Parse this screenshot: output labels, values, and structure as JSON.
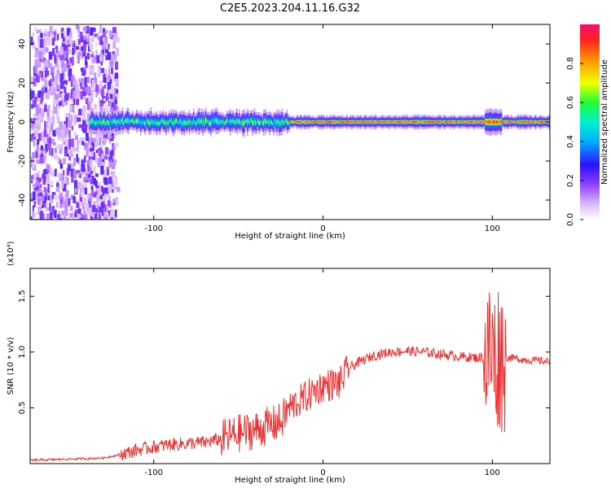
{
  "title": "C2E5.2023.204.11.16.G32",
  "chart_data": [
    {
      "type": "heatmap",
      "xlabel": "Height of straight line (km)",
      "ylabel": "Frequency (Hz)",
      "xlim": [
        -173,
        134
      ],
      "ylim": [
        -50,
        50
      ],
      "xticks": [
        -100,
        0,
        100
      ],
      "yticks": [
        -40,
        -20,
        0,
        20,
        40
      ],
      "grid": false,
      "colorbar": {
        "label": "Normalized spectral amplitude",
        "range": [
          0.0,
          1.0
        ],
        "ticks": [
          0.0,
          0.2,
          0.4,
          0.6,
          0.8
        ],
        "colors": [
          "#ffffff",
          "#d8b8ff",
          "#9040ff",
          "#2a10ff",
          "#00b0ff",
          "#00f0d0",
          "#20ff30",
          "#f0ff00",
          "#ff9000",
          "#ff2020",
          "#f01070"
        ]
      },
      "regions": [
        {
          "x_from": -173,
          "x_to": -125,
          "y_from": -50,
          "y_to": 50,
          "description_value": 0.3
        },
        {
          "x_from": -135,
          "x_to": -20,
          "y_from": -6,
          "y_to": 6,
          "description_value": 0.55
        },
        {
          "x_from": -20,
          "x_to": 134,
          "y_from": -2,
          "y_to": 2,
          "description_value": 0.85
        }
      ]
    },
    {
      "type": "line",
      "xlabel": "Height of straight line (km)",
      "ylabel": "SNR (10 * v/v)",
      "y_multiplier": "(x10⁴)",
      "xlim": [
        -173,
        134
      ],
      "ylim": [
        0,
        1.75
      ],
      "xticks": [
        -100,
        0,
        100
      ],
      "yticks": [
        0.5,
        1.0,
        1.5
      ],
      "yticklabels": [
        "0.5",
        "1.0",
        "1.5"
      ],
      "grid": false,
      "series": [
        {
          "color": "#ee3333",
          "x": [
            -173,
            -150,
            -130,
            -120,
            -110,
            -100,
            -90,
            -80,
            -70,
            -60,
            -50,
            -40,
            -30,
            -25,
            -20,
            -10,
            0,
            10,
            15,
            20,
            30,
            40,
            50,
            60,
            70,
            80,
            90,
            95,
            100,
            102,
            104,
            106,
            110,
            120,
            130,
            134
          ],
          "y": [
            0.03,
            0.04,
            0.05,
            0.08,
            0.12,
            0.15,
            0.17,
            0.18,
            0.19,
            0.22,
            0.27,
            0.3,
            0.35,
            0.37,
            0.5,
            0.6,
            0.7,
            0.72,
            0.85,
            0.9,
            0.97,
            1.0,
            1.01,
            1.0,
            0.98,
            0.96,
            0.95,
            0.95,
            1.0,
            0.9,
            1.0,
            0.95,
            0.95,
            0.93,
            0.92,
            0.91
          ]
        }
      ]
    }
  ]
}
